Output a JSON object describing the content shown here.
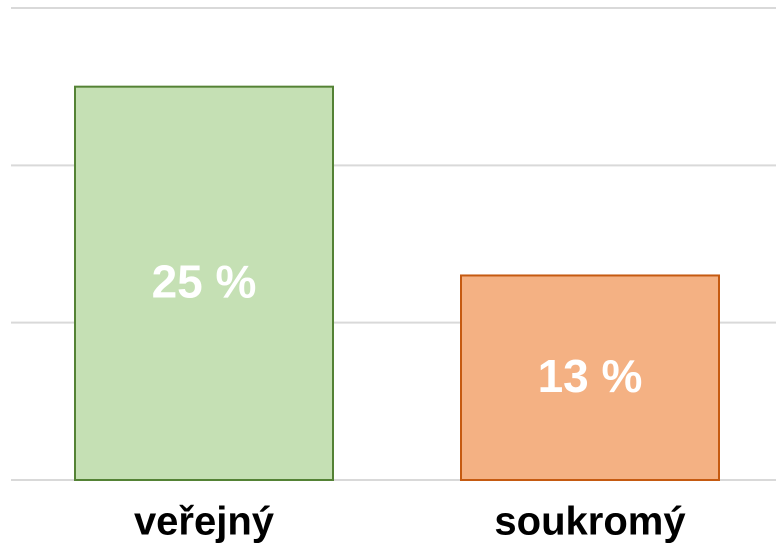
{
  "chart_data": {
    "type": "bar",
    "categories": [
      "veřejný",
      "soukromý"
    ],
    "values": [
      25,
      13
    ],
    "value_labels": [
      "25 %",
      "13 %"
    ],
    "colors": [
      "#c5e0b4",
      "#f4b183"
    ],
    "edgecolors": [
      "#548235",
      "#c55a11"
    ],
    "ylim": [
      0,
      30
    ],
    "yticks": [
      0,
      10,
      20,
      30
    ],
    "grid": true
  }
}
